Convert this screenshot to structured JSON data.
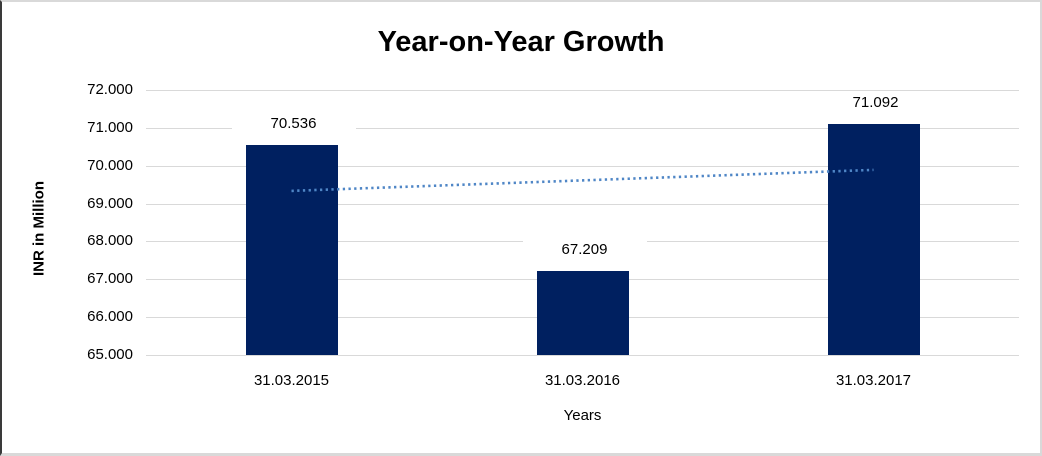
{
  "chart_data": {
    "type": "bar",
    "title": "Year-on-Year Growth",
    "xlabel": "Years",
    "ylabel": "INR in Million",
    "categories": [
      "31.03.2015",
      "31.03.2016",
      "31.03.2017"
    ],
    "values": [
      70.536,
      67.209,
      71.092
    ],
    "data_labels": [
      "70.536",
      "67.209",
      "71.092"
    ],
    "ylim": [
      65,
      72
    ],
    "ytick_step": 1,
    "ytick_labels": [
      "65.000",
      "66.000",
      "67.000",
      "68.000",
      "69.000",
      "70.000",
      "71.000",
      "72.000"
    ],
    "grid": "horizontal",
    "legend_position": "none",
    "trendline": {
      "type": "linear",
      "style": "dotted",
      "start_value": 69.335,
      "end_value": 69.89
    },
    "colors": {
      "bar": "#002060",
      "trendline": "#4f86c6",
      "gridline": "#d9d9d9",
      "text": "#000000"
    }
  }
}
